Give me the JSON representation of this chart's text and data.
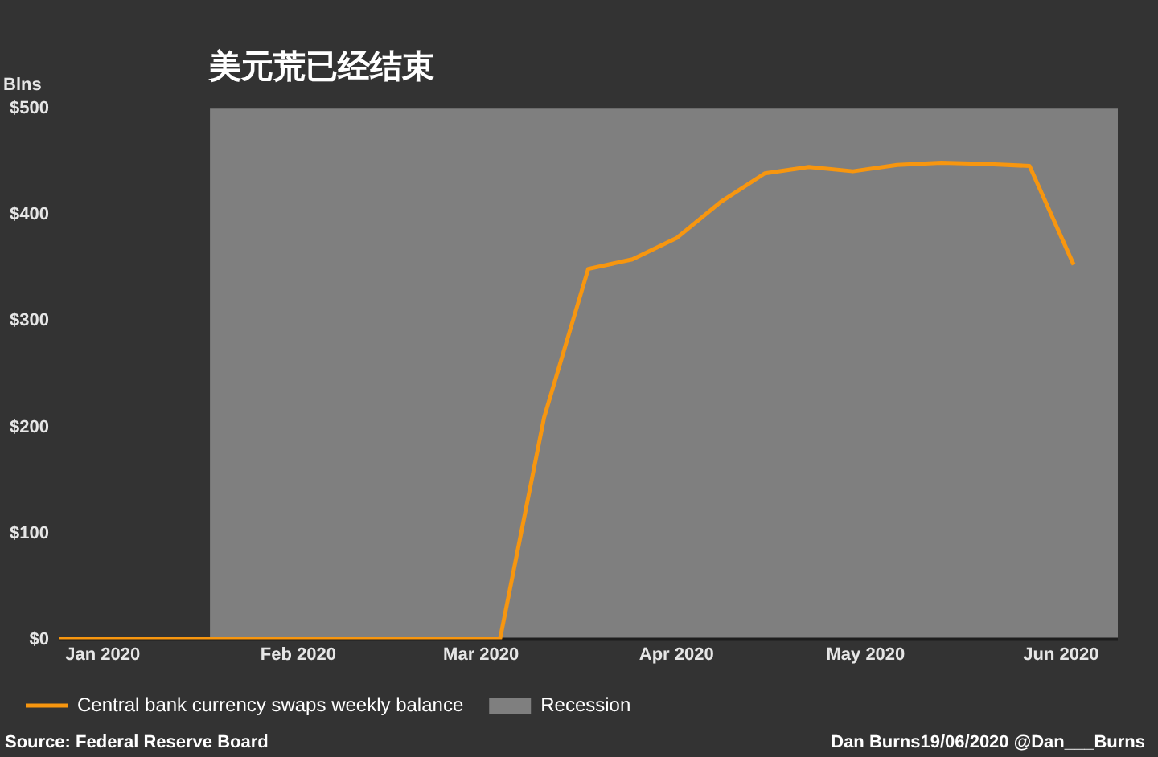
{
  "chart_data": {
    "type": "line",
    "title": "美元荒已经结束",
    "ylabel": "Blns",
    "x": [
      "2020-01-08",
      "2020-03-18",
      "2020-03-25",
      "2020-04-01",
      "2020-04-08",
      "2020-04-15",
      "2020-04-22",
      "2020-04-29",
      "2020-05-06",
      "2020-05-13",
      "2020-05-20",
      "2020-05-27",
      "2020-06-03",
      "2020-06-10",
      "2020-06-17"
    ],
    "series": [
      {
        "name": "Central bank currency swaps weekly balance",
        "color": "#f7960f",
        "values": [
          0,
          0,
          209,
          349,
          358,
          378,
          412,
          439,
          445,
          441,
          447,
          449,
          448,
          446,
          353
        ]
      }
    ],
    "xlim": [
      "2020-01-08",
      "2020-06-24"
    ],
    "xticks": [
      {
        "value": "2020-01-15",
        "label": "Jan 2020"
      },
      {
        "value": "2020-02-15",
        "label": "Feb 2020"
      },
      {
        "value": "2020-03-15",
        "label": "Mar 2020"
      },
      {
        "value": "2020-04-15",
        "label": "Apr 2020"
      },
      {
        "value": "2020-05-15",
        "label": "May 2020"
      },
      {
        "value": "2020-06-15",
        "label": "Jun 2020"
      }
    ],
    "ylim": [
      0,
      500
    ],
    "yticks": [
      {
        "value": 0,
        "label": "$0"
      },
      {
        "value": 100,
        "label": "$100"
      },
      {
        "value": 200,
        "label": "$200"
      },
      {
        "value": 300,
        "label": "$300"
      },
      {
        "value": 400,
        "label": "$400"
      },
      {
        "value": 500,
        "label": "$500"
      }
    ],
    "bands": [
      {
        "axis": "x",
        "from": "2020-02-01",
        "to": "2020-06-24",
        "label": "Recession",
        "color": "#7f7f7f"
      }
    ],
    "grid": false,
    "legend": "bottom",
    "marker": "none",
    "line_style": "solid",
    "annotations": [
      "Source: Federal Reserve Board",
      "Dan Burns19/06/2020 @Dan___Burns"
    ]
  }
}
